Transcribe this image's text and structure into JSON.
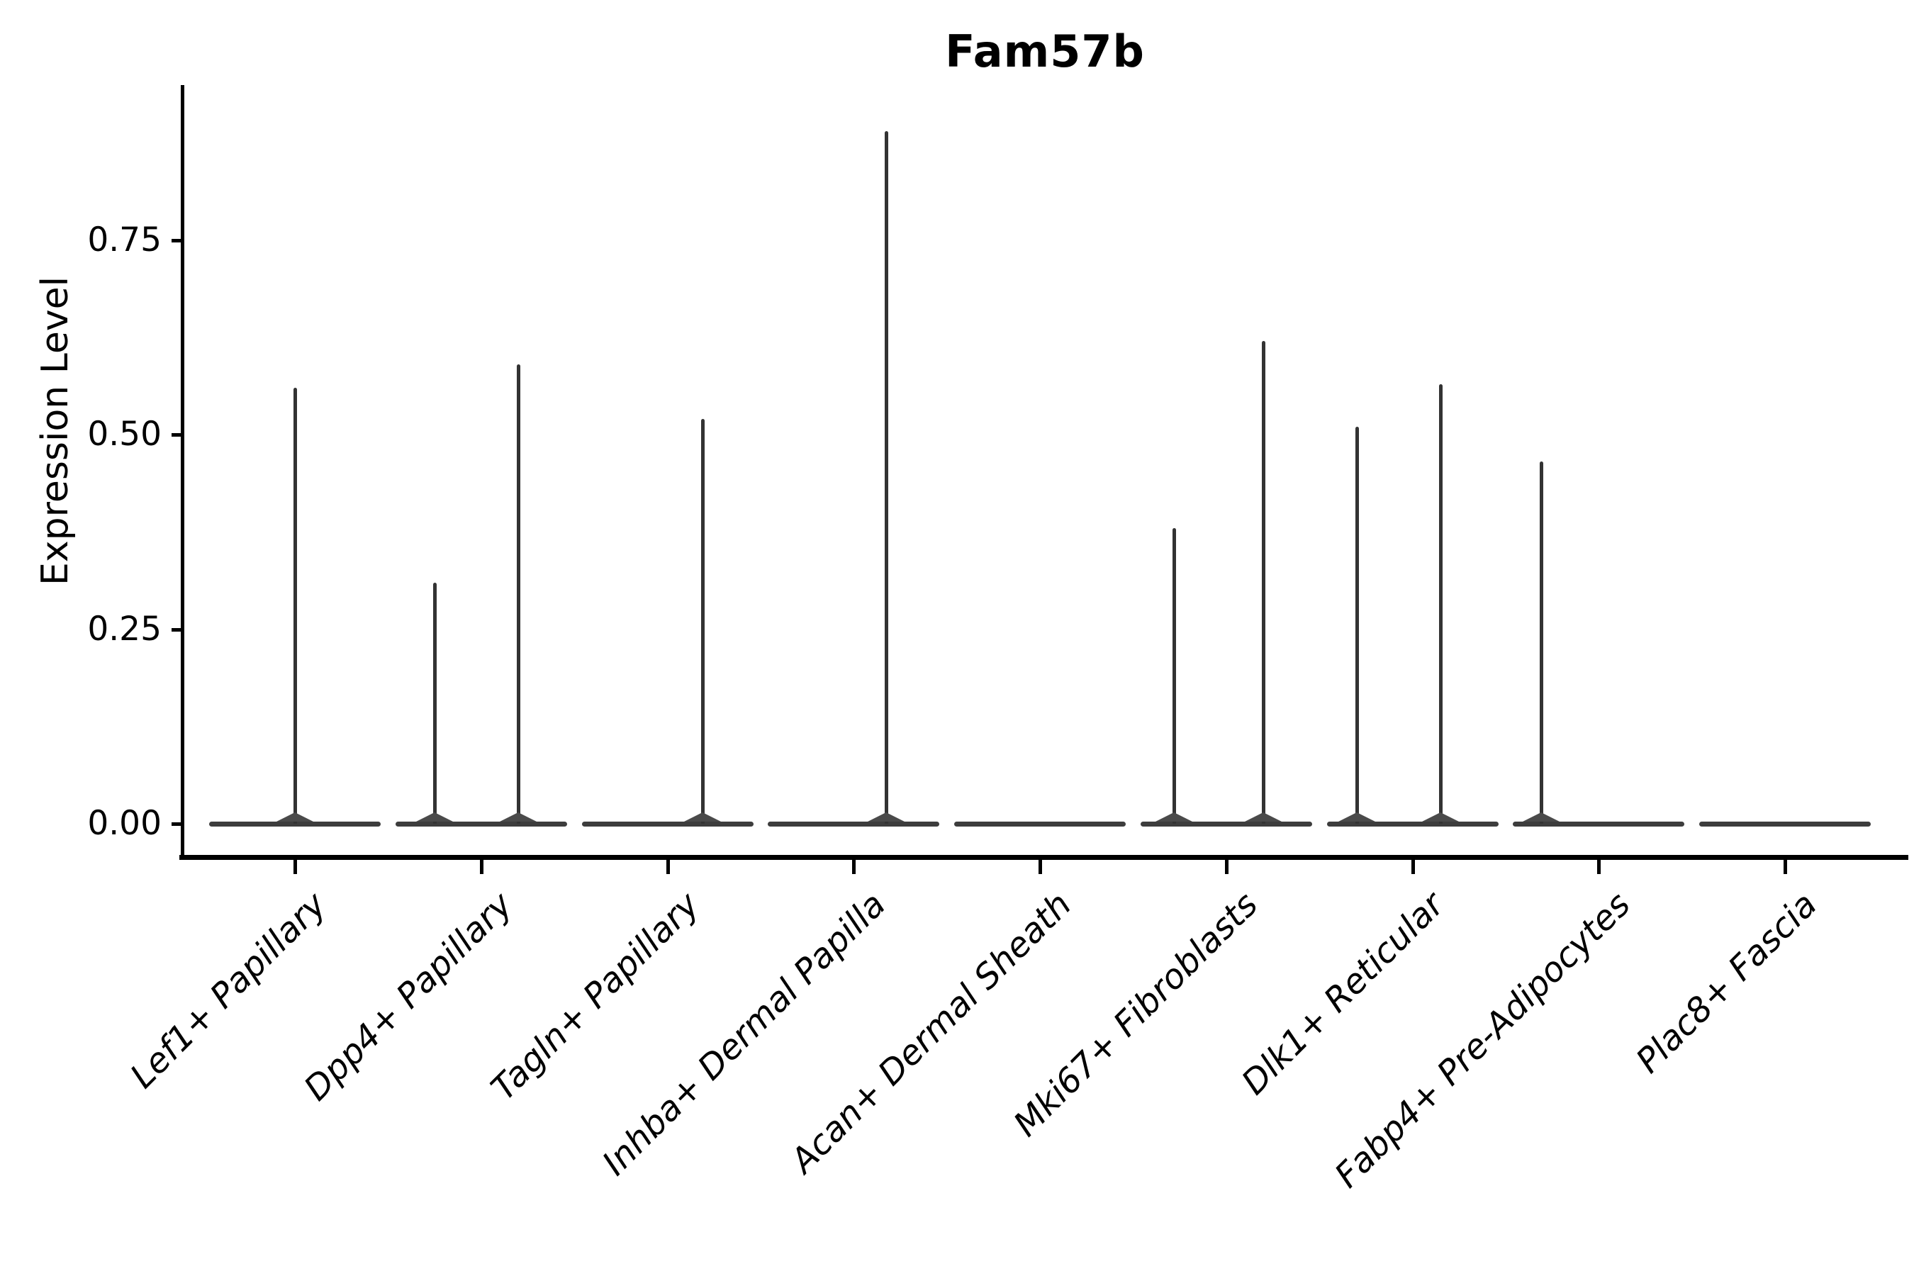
{
  "chart_data": {
    "type": "violin",
    "title": "Fam57b",
    "ylabel": "Expression Level",
    "xlabel": "",
    "yticks": [
      "0.00",
      "0.25",
      "0.50",
      "0.75"
    ],
    "ytick_values": [
      0,
      0.25,
      0.5,
      0.75
    ],
    "ylim": [
      0,
      0.95
    ],
    "grid": false,
    "legend": "none",
    "x_label_angle_deg": 45,
    "x_label_style": "italic",
    "categories": [
      "Lef1+ Papillary",
      "Dpp4+ Papillary",
      "Tagln+ Papillary",
      "Inhba+ Dermal Papilla",
      "Acan+ Dermal Sheath",
      "Mki67+ Fibroblasts",
      "Dlk1+ Reticular",
      "Fabp4+ Pre-Adipocytes",
      "Plac8+ Fascia"
    ],
    "series": [
      {
        "name": "Lef1+ Papillary",
        "max_expression": 0.56,
        "spikes": [
          {
            "offset_frac": 0.0,
            "value": 0.56
          }
        ]
      },
      {
        "name": "Dpp4+ Papillary",
        "max_expression": 0.59,
        "spikes": [
          {
            "offset_frac": -0.25,
            "value": 0.31
          },
          {
            "offset_frac": 0.2,
            "value": 0.59
          }
        ]
      },
      {
        "name": "Tagln+ Papillary",
        "max_expression": 0.52,
        "spikes": [
          {
            "offset_frac": 0.19,
            "value": 0.52
          }
        ]
      },
      {
        "name": "Inhba+ Dermal Papilla",
        "max_expression": 0.89,
        "spikes": [
          {
            "offset_frac": 0.175,
            "value": 0.89
          }
        ]
      },
      {
        "name": "Acan+ Dermal Sheath",
        "max_expression": 0.0,
        "spikes": []
      },
      {
        "name": "Mki67+ Fibroblasts",
        "max_expression": 0.62,
        "spikes": [
          {
            "offset_frac": -0.28,
            "value": 0.38
          },
          {
            "offset_frac": 0.2,
            "value": 0.62
          }
        ]
      },
      {
        "name": "Dlk1+ Reticular",
        "max_expression": 0.565,
        "spikes": [
          {
            "offset_frac": -0.3,
            "value": 0.51
          },
          {
            "offset_frac": 0.15,
            "value": 0.565
          }
        ]
      },
      {
        "name": "Fabp4+ Pre-Adipocytes",
        "max_expression": 0.465,
        "spikes": [
          {
            "offset_frac": -0.31,
            "value": 0.465
          }
        ]
      },
      {
        "name": "Plac8+ Fascia",
        "max_expression": 0.0,
        "spikes": []
      }
    ],
    "colors": {
      "spike_line": "#333333",
      "violin_body": "#3d3d3d",
      "bump": "#4a4a4a",
      "spine": "#000000",
      "text": "#000000",
      "background": "#ffffff"
    }
  }
}
